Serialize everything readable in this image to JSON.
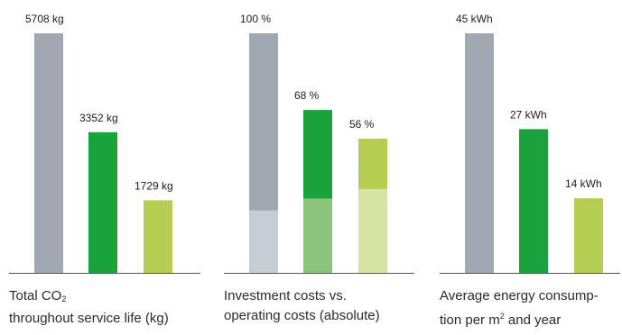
{
  "colors": {
    "grey": "#a0a9b1",
    "green": "#1aa33c",
    "lime": "#b5cd51",
    "grey_light": "#c6cdd3",
    "green_light": "#8cc47b",
    "lime_light": "#d7e3a3",
    "axis": "#555555"
  },
  "chart_data": [
    {
      "type": "bar",
      "title": "",
      "xlabel": "",
      "ylabel": "",
      "caption": {
        "line1_pre": "Total CO",
        "line1_sub": "2",
        "line2": "throughout service life (kg)"
      },
      "values": [
        5708,
        3352,
        1729
      ],
      "value_labels": [
        "5708 kg",
        "3352 kg",
        "1729 kg"
      ],
      "bar_colors": [
        "grey",
        "green",
        "lime"
      ],
      "ylim": [
        0,
        5708
      ]
    },
    {
      "type": "bar",
      "stacked": true,
      "title": "",
      "xlabel": "",
      "ylabel": "",
      "caption": {
        "line1": "Investment costs vs.",
        "line2": "operating costs (absolute)"
      },
      "values": [
        100,
        68,
        56
      ],
      "value_labels": [
        "100 %",
        "68 %",
        "56 %"
      ],
      "series": [
        {
          "values": [
            26,
            31,
            35
          ],
          "colors": [
            "grey_light",
            "green_light",
            "lime_light"
          ]
        },
        {
          "values": [
            74,
            37,
            21
          ],
          "colors": [
            "grey",
            "green",
            "lime"
          ]
        }
      ],
      "ylim": [
        0,
        100
      ]
    },
    {
      "type": "bar",
      "title": "",
      "xlabel": "",
      "ylabel": "",
      "caption": {
        "line1": "Average energy consump-",
        "line2_pre": "tion per m",
        "line2_sup": "2",
        "line2_post": " and year"
      },
      "values": [
        45,
        27,
        14
      ],
      "value_labels": [
        "45 kWh",
        "27 kWh",
        "14 kWh"
      ],
      "bar_colors": [
        "grey",
        "green",
        "lime"
      ],
      "ylim": [
        0,
        45
      ]
    }
  ]
}
